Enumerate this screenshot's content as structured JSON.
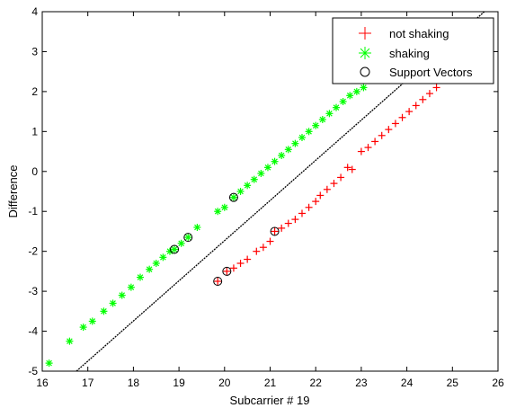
{
  "chart_data": {
    "type": "scatter",
    "title": "",
    "xlabel": "Subcarrier # 19",
    "ylabel": "Difference",
    "xlim": [
      16,
      26
    ],
    "ylim": [
      -5,
      4
    ],
    "xticks": [
      16,
      17,
      18,
      19,
      20,
      21,
      22,
      23,
      24,
      25,
      26
    ],
    "yticks": [
      -5,
      -4,
      -3,
      -2,
      -1,
      0,
      1,
      2,
      3,
      4
    ],
    "grid": false,
    "legend_position": "top-right",
    "colors": {
      "not_shaking": "#ff0000",
      "shaking": "#00ff00",
      "support_vectors": "#000000",
      "boundary": "#000000"
    },
    "boundary": {
      "name": "",
      "x": [
        16.75,
        25.7
      ],
      "y": [
        -5,
        4
      ]
    },
    "series": [
      {
        "name": "not shaking",
        "marker": "+",
        "points": [
          [
            19.85,
            -2.75
          ],
          [
            20.05,
            -2.5
          ],
          [
            20.2,
            -2.42
          ],
          [
            20.35,
            -2.3
          ],
          [
            20.5,
            -2.2
          ],
          [
            20.7,
            -2.0
          ],
          [
            20.85,
            -1.9
          ],
          [
            21.0,
            -1.75
          ],
          [
            21.1,
            -1.5
          ],
          [
            21.25,
            -1.42
          ],
          [
            21.4,
            -1.3
          ],
          [
            21.55,
            -1.2
          ],
          [
            21.7,
            -1.05
          ],
          [
            21.85,
            -0.9
          ],
          [
            22.0,
            -0.75
          ],
          [
            22.1,
            -0.6
          ],
          [
            22.25,
            -0.45
          ],
          [
            22.4,
            -0.3
          ],
          [
            22.55,
            -0.15
          ],
          [
            22.7,
            0.1
          ],
          [
            22.8,
            0.05
          ],
          [
            23.0,
            0.5
          ],
          [
            23.15,
            0.6
          ],
          [
            23.3,
            0.75
          ],
          [
            23.45,
            0.9
          ],
          [
            23.6,
            1.05
          ],
          [
            23.75,
            1.2
          ],
          [
            23.9,
            1.35
          ],
          [
            24.05,
            1.5
          ],
          [
            24.2,
            1.65
          ],
          [
            24.35,
            1.8
          ],
          [
            24.5,
            1.95
          ],
          [
            24.65,
            2.1
          ],
          [
            24.8,
            2.3
          ],
          [
            25.0,
            2.45
          ],
          [
            25.2,
            2.65
          ]
        ]
      },
      {
        "name": "shaking",
        "marker": "*",
        "points": [
          [
            16.15,
            -4.8
          ],
          [
            16.6,
            -4.25
          ],
          [
            16.9,
            -3.9
          ],
          [
            17.1,
            -3.75
          ],
          [
            17.35,
            -3.5
          ],
          [
            17.55,
            -3.3
          ],
          [
            17.75,
            -3.1
          ],
          [
            17.95,
            -2.9
          ],
          [
            18.15,
            -2.65
          ],
          [
            18.35,
            -2.45
          ],
          [
            18.5,
            -2.3
          ],
          [
            18.65,
            -2.15
          ],
          [
            18.8,
            -2.0
          ],
          [
            18.9,
            -1.95
          ],
          [
            19.05,
            -1.8
          ],
          [
            19.2,
            -1.65
          ],
          [
            19.4,
            -1.4
          ],
          [
            19.85,
            -1.0
          ],
          [
            20.0,
            -0.9
          ],
          [
            20.2,
            -0.65
          ],
          [
            20.35,
            -0.5
          ],
          [
            20.5,
            -0.35
          ],
          [
            20.65,
            -0.2
          ],
          [
            20.8,
            -0.05
          ],
          [
            20.95,
            0.1
          ],
          [
            21.1,
            0.25
          ],
          [
            21.25,
            0.4
          ],
          [
            21.4,
            0.55
          ],
          [
            21.55,
            0.7
          ],
          [
            21.7,
            0.85
          ],
          [
            21.85,
            1.0
          ],
          [
            22.0,
            1.15
          ],
          [
            22.15,
            1.3
          ],
          [
            22.3,
            1.45
          ],
          [
            22.45,
            1.6
          ],
          [
            22.6,
            1.75
          ],
          [
            22.75,
            1.9
          ],
          [
            22.9,
            2.0
          ],
          [
            23.05,
            2.1
          ]
        ]
      },
      {
        "name": "Support Vectors",
        "marker": "o",
        "points": [
          [
            18.9,
            -1.95
          ],
          [
            19.2,
            -1.65
          ],
          [
            20.2,
            -0.65
          ],
          [
            19.85,
            -2.75
          ],
          [
            20.05,
            -2.5
          ],
          [
            21.1,
            -1.5
          ]
        ]
      }
    ]
  }
}
